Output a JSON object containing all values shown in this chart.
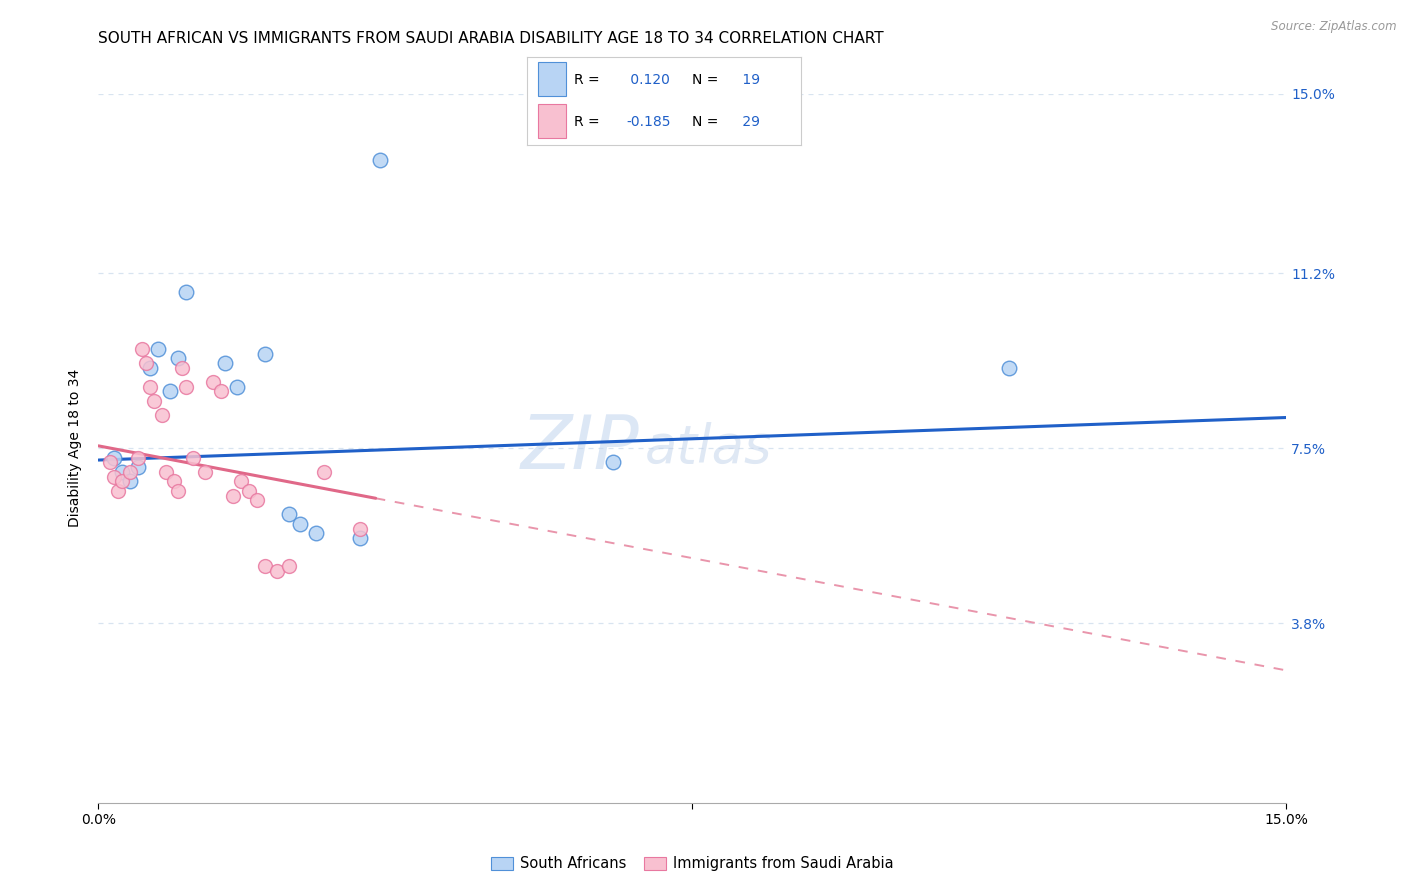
{
  "title": "SOUTH AFRICAN VS IMMIGRANTS FROM SAUDI ARABIA DISABILITY AGE 18 TO 34 CORRELATION CHART",
  "source": "Source: ZipAtlas.com",
  "ylabel": "Disability Age 18 to 34",
  "xlim": [
    0.0,
    15.0
  ],
  "ylim": [
    0.0,
    15.0
  ],
  "yticks": [
    3.8,
    7.5,
    11.2,
    15.0
  ],
  "ytick_labels": [
    "3.8%",
    "7.5%",
    "11.2%",
    "15.0%"
  ],
  "blue_r": 0.12,
  "blue_n": 19,
  "pink_r": -0.185,
  "pink_n": 29,
  "blue_color": "#b8d4f4",
  "pink_color": "#f8c0d0",
  "blue_edge_color": "#5090d8",
  "pink_edge_color": "#e878a0",
  "blue_line_color": "#2060c8",
  "pink_line_color": "#e06888",
  "blue_label_color": "#2060c8",
  "grid_color": "#d8e4f0",
  "blue_line_x0": 0.0,
  "blue_line_y0": 7.25,
  "blue_line_x1": 15.0,
  "blue_line_y1": 8.15,
  "pink_line_x0": 0.0,
  "pink_line_y0": 7.55,
  "pink_line_x1": 15.0,
  "pink_line_y1": 2.8,
  "pink_solid_end": 3.5,
  "blue_x": [
    0.2,
    0.3,
    0.4,
    0.5,
    0.65,
    0.75,
    0.9,
    1.0,
    1.1,
    1.6,
    1.75,
    2.1,
    2.4,
    2.55,
    2.75,
    3.3,
    3.55,
    6.5,
    11.5
  ],
  "blue_y": [
    7.3,
    7.0,
    6.8,
    7.1,
    9.2,
    9.6,
    8.7,
    9.4,
    10.8,
    9.3,
    8.8,
    9.5,
    6.1,
    5.9,
    5.7,
    5.6,
    13.6,
    7.2,
    9.2
  ],
  "pink_x": [
    0.15,
    0.2,
    0.25,
    0.3,
    0.4,
    0.5,
    0.55,
    0.6,
    0.65,
    0.7,
    0.8,
    0.85,
    0.95,
    1.0,
    1.05,
    1.1,
    1.2,
    1.35,
    1.45,
    1.55,
    1.7,
    1.8,
    1.9,
    2.0,
    2.1,
    2.25,
    2.4,
    2.85,
    3.3
  ],
  "pink_y": [
    7.2,
    6.9,
    6.6,
    6.8,
    7.0,
    7.3,
    9.6,
    9.3,
    8.8,
    8.5,
    8.2,
    7.0,
    6.8,
    6.6,
    9.2,
    8.8,
    7.3,
    7.0,
    8.9,
    8.7,
    6.5,
    6.8,
    6.6,
    6.4,
    5.0,
    4.9,
    5.0,
    7.0,
    5.8
  ],
  "title_fontsize": 11,
  "label_fontsize": 10,
  "tick_fontsize": 10
}
